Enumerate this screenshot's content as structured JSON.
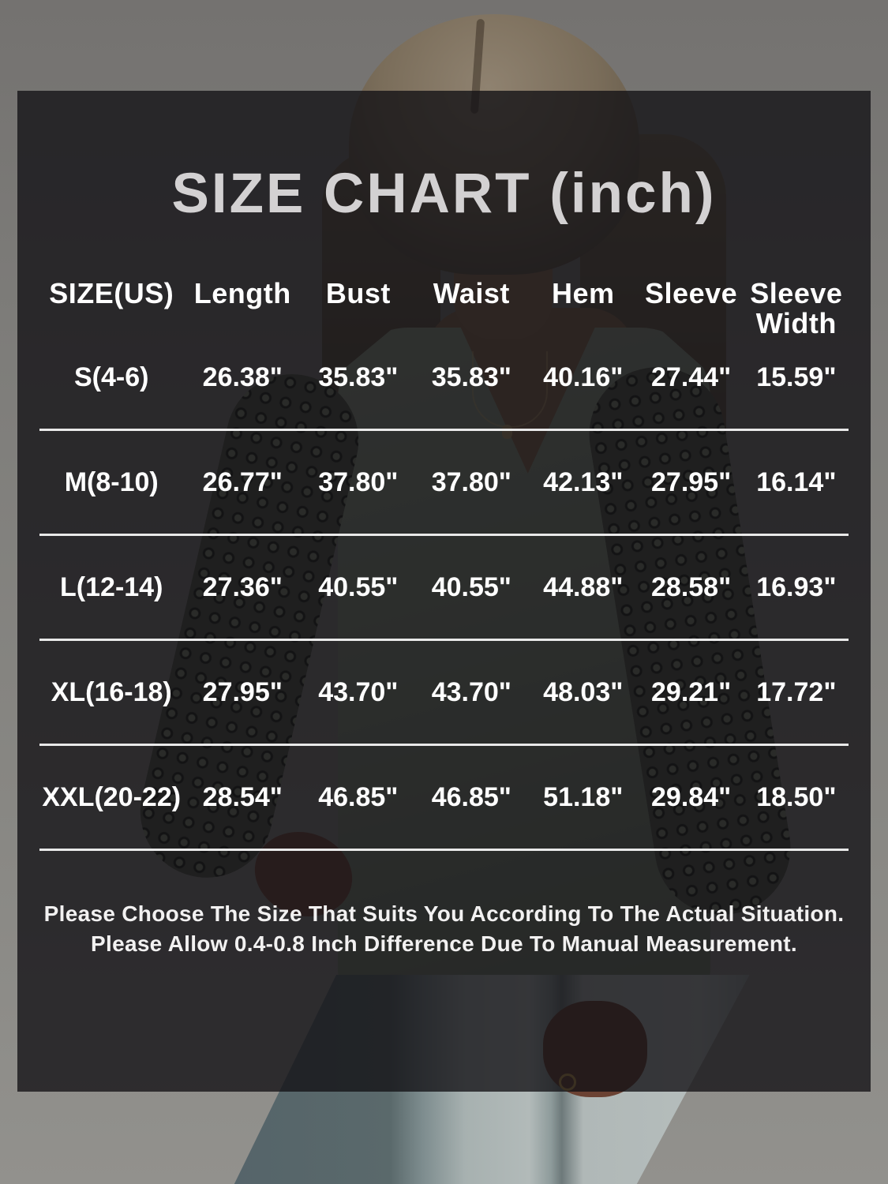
{
  "chart_data": {
    "type": "table",
    "title": "SIZE CHART (inch)",
    "unit": "inch",
    "columns": [
      "SIZE(US)",
      "Length",
      "Bust",
      "Waist",
      "Hem",
      "Sleeve",
      "Sleeve Width"
    ],
    "rows": [
      [
        "S(4-6)",
        "26.38\"",
        "35.83\"",
        "35.83\"",
        "40.16\"",
        "27.44\"",
        "15.59\""
      ],
      [
        "M(8-10)",
        "26.77\"",
        "37.80\"",
        "37.80\"",
        "42.13\"",
        "27.95\"",
        "16.14\""
      ],
      [
        "L(12-14)",
        "27.36\"",
        "40.55\"",
        "40.55\"",
        "44.88\"",
        "28.58\"",
        "16.93\""
      ],
      [
        "XL(16-18)",
        "27.95\"",
        "43.70\"",
        "43.70\"",
        "48.03\"",
        "29.21\"",
        "17.72\""
      ],
      [
        "XXL(20-22)",
        "28.54\"",
        "46.85\"",
        "46.85\"",
        "51.18\"",
        "29.84\"",
        "18.50\""
      ]
    ],
    "notes": [
      "Please Choose The Size That Suits You According To The Actual Situation.",
      "Please Allow 0.4-0.8 Inch Difference Due To Manual Measurement."
    ]
  },
  "colors": {
    "overlay_panel": "#1a191c",
    "title_text": "#d3d1d2",
    "table_text": "#ffffff",
    "separator_line": "#e9e9e9",
    "background_wall": "#7e7d7a",
    "model_top_sage": "#8d9a86",
    "model_jeans_denim": "#b4bcbb"
  }
}
